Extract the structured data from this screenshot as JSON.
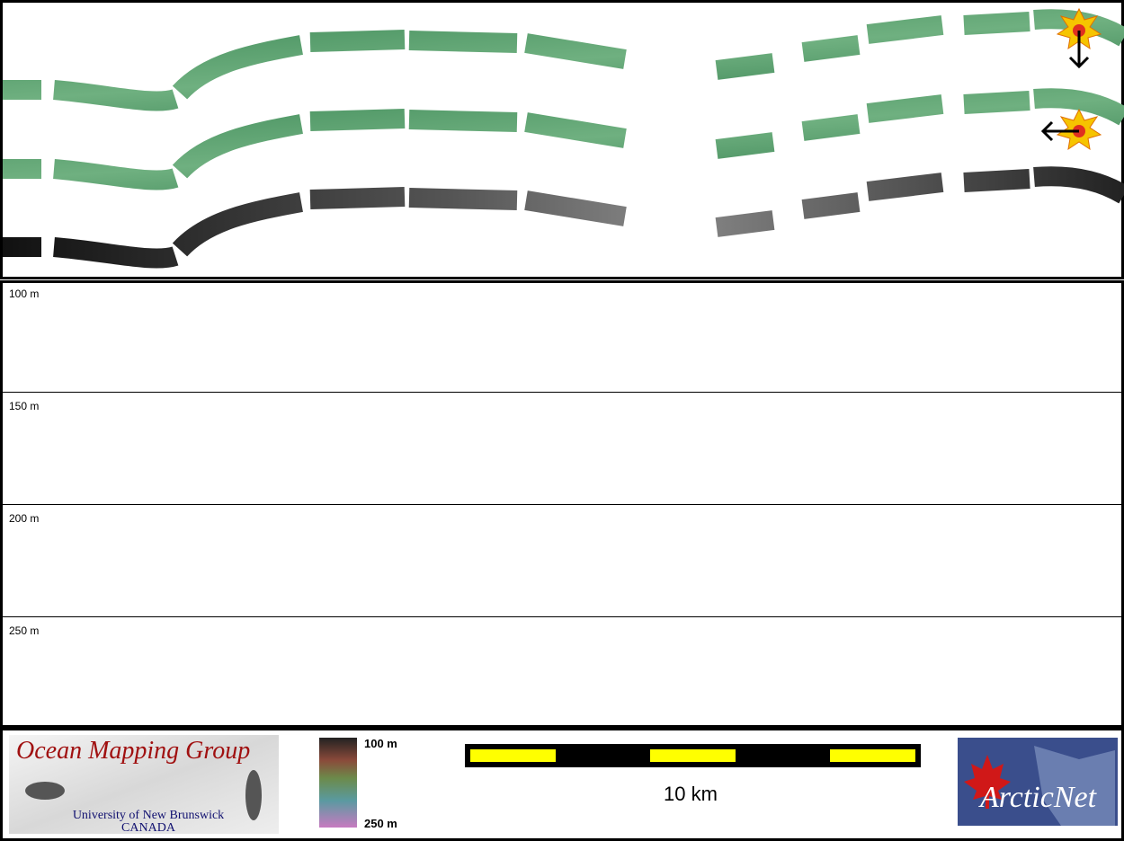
{
  "profile": {
    "depth_labels": [
      "100 m",
      "150 m",
      "200 m",
      "250 m"
    ]
  },
  "legend": {
    "ocean_mapping_group": {
      "title": "Ocean Mapping Group",
      "university": "University of New Brunswick",
      "country": "CANADA"
    },
    "colorbar": {
      "top_label": "100 m",
      "bottom_label": "250 m"
    },
    "scale_bar": {
      "label": "10 km"
    },
    "arcticnet": {
      "label": "ArcticNet"
    }
  }
}
